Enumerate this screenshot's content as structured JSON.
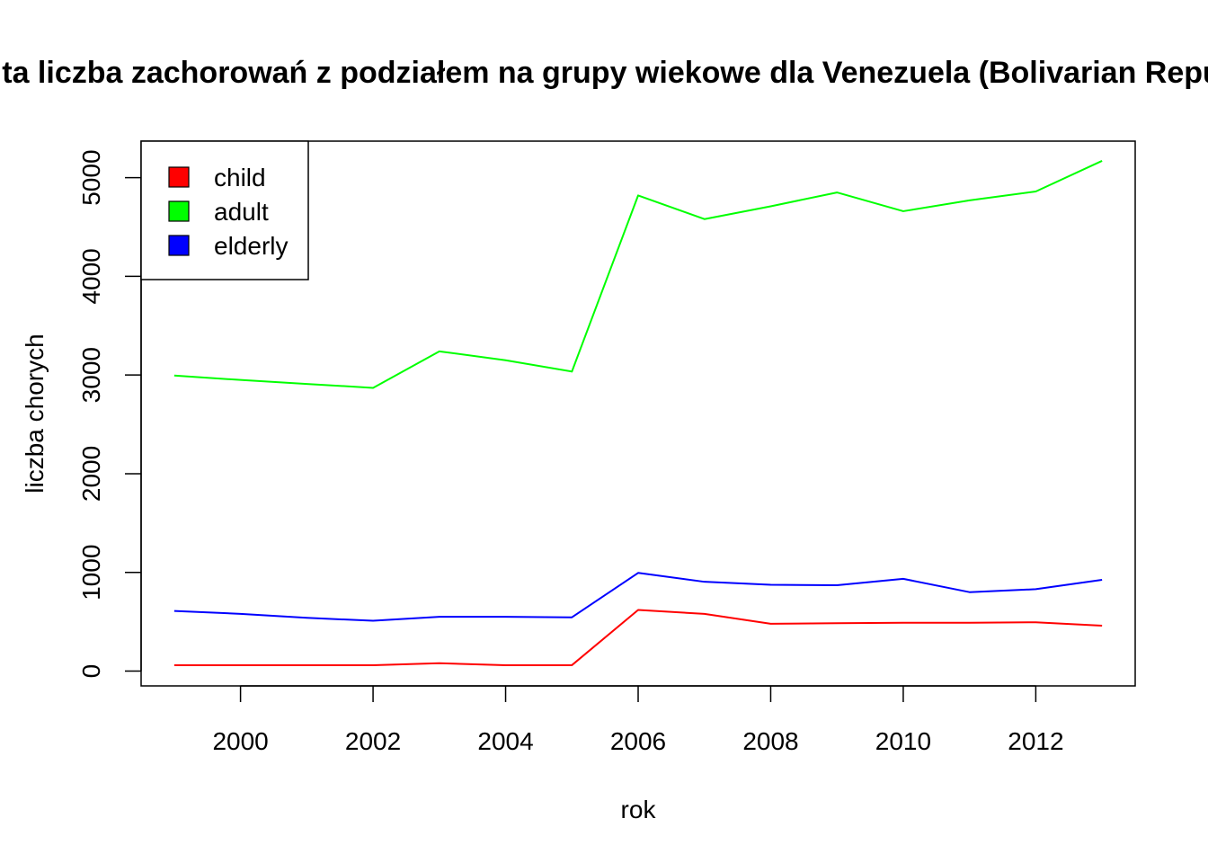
{
  "chart_data": {
    "type": "line",
    "title": "Całkowita liczba zachorowań z podziałem na grupy wiekowe dla Venezuela (Bolivarian Republic of)",
    "xlabel": "rok",
    "ylabel": "liczba chorych",
    "x": [
      1999,
      2000,
      2001,
      2002,
      2003,
      2004,
      2005,
      2006,
      2007,
      2008,
      2009,
      2010,
      2011,
      2012,
      2013
    ],
    "xlim": [
      1998.5,
      2013.5
    ],
    "ylim": [
      -150,
      5370
    ],
    "x_ticks": [
      "2000",
      "2002",
      "2004",
      "2006",
      "2008",
      "2010",
      "2012"
    ],
    "y_ticks": [
      "0",
      "1000",
      "2000",
      "3000",
      "4000",
      "5000"
    ],
    "grid": false,
    "legend_position": "top-left",
    "series": [
      {
        "name": "child",
        "color": "#ff0000",
        "values": [
          60,
          60,
          60,
          60,
          80,
          60,
          60,
          620,
          580,
          480,
          485,
          490,
          490,
          495,
          460
        ]
      },
      {
        "name": "adult",
        "color": "#00ff00",
        "values": [
          2995,
          2950,
          2910,
          2870,
          3240,
          3150,
          3035,
          4820,
          4580,
          4710,
          4850,
          4660,
          4770,
          4860,
          5170
        ]
      },
      {
        "name": "elderly",
        "color": "#0000ff",
        "values": [
          610,
          580,
          540,
          510,
          550,
          550,
          545,
          995,
          905,
          875,
          870,
          935,
          800,
          830,
          925
        ]
      }
    ]
  }
}
